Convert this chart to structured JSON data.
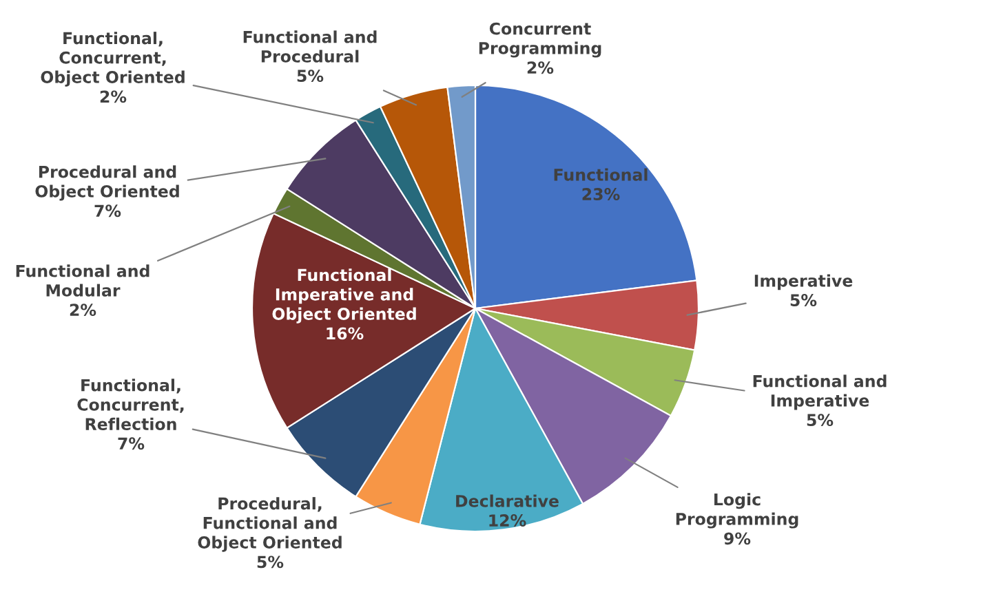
{
  "chart_data": {
    "type": "pie",
    "categories": [
      "Functional",
      "Imperative",
      "Functional and\nImperative",
      "Logic\nProgramming",
      "Declarative",
      "Procedural,\nFunctional and\nObject Oriented",
      "Functional,\nConcurrent,\nReflection",
      "Functional\nImperative and\nObject Oriented",
      "Functional and\nModular",
      "Procedural and\nObject Oriented",
      "Functional,\nConcurrent,\nObject Oriented",
      "Functional and\nProcedural",
      "Concurrent\nProgramming"
    ],
    "values": [
      23,
      5,
      5,
      9,
      12,
      5,
      7,
      16,
      2,
      7,
      2,
      5,
      2
    ],
    "value_labels": [
      "23%",
      "5%",
      "5%",
      "9%",
      "12%",
      "5%",
      "7%",
      "16%",
      "2%",
      "7%",
      "2%",
      "5%",
      "2%"
    ],
    "colors": [
      "#4472c4",
      "#c0504d",
      "#9bbb59",
      "#8064a2",
      "#4bacc6",
      "#f79646",
      "#2c4d75",
      "#772c2a",
      "#5f7530",
      "#4d3b62",
      "#276a7c",
      "#b65708",
      "#729aca"
    ],
    "legend": false
  }
}
